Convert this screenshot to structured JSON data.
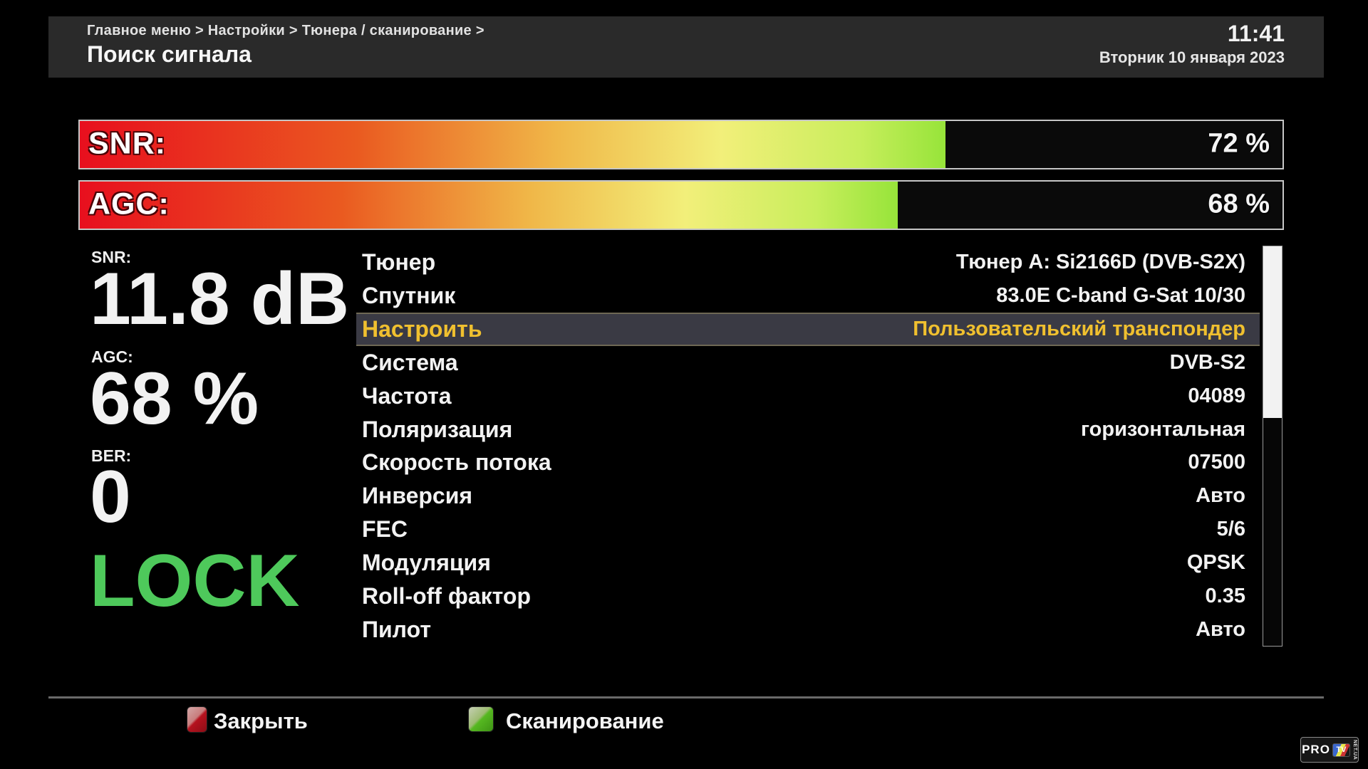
{
  "header": {
    "breadcrumb": "Главное меню > Настройки > Тюнера / сканирование >",
    "title": "Поиск сигнала",
    "time": "11:41",
    "date": "Вторник 10 января 2023"
  },
  "signal_bars": [
    {
      "label": "SNR:",
      "value_text": "72 %",
      "percent": 72
    },
    {
      "label": "AGC:",
      "value_text": "68 %",
      "percent": 68
    }
  ],
  "readouts": {
    "snr": {
      "label": "SNR:",
      "value": "11.8 dB"
    },
    "agc": {
      "label": "AGC:",
      "value": "68 %"
    },
    "ber": {
      "label": "BER:",
      "value": "0"
    },
    "lock_status": "LOCK"
  },
  "menu": {
    "rows": [
      {
        "label": "Тюнер",
        "value": "Тюнер A: Si2166D (DVB-S2X)",
        "selected": false
      },
      {
        "label": "Спутник",
        "value": "83.0E C-band G-Sat 10/30",
        "selected": false
      },
      {
        "label": "Настроить",
        "value": "Пользовательский транспондер",
        "selected": true
      },
      {
        "label": "Система",
        "value": "DVB-S2",
        "selected": false
      },
      {
        "label": "Частота",
        "value": "04089",
        "selected": false
      },
      {
        "label": "Поляризация",
        "value": "горизонтальная",
        "selected": false
      },
      {
        "label": "Скорость потока",
        "value": "07500",
        "selected": false
      },
      {
        "label": "Инверсия",
        "value": "Авто",
        "selected": false
      },
      {
        "label": "FEC",
        "value": "5/6",
        "selected": false
      },
      {
        "label": "Модуляция",
        "value": "QPSK",
        "selected": false
      },
      {
        "label": "Roll-off фактор",
        "value": "0.35",
        "selected": false
      },
      {
        "label": "Пилот",
        "value": "Авто",
        "selected": false
      }
    ],
    "scrollbar": {
      "thumb_percent": 43
    }
  },
  "footer": {
    "close_label": "Закрыть",
    "scan_label": "Сканирование"
  },
  "logo": {
    "pro": "PRO",
    "tv": "TV",
    "net": "NET.UA"
  },
  "colors": {
    "accent_yellow": "#f0c02f",
    "lock_green": "#4ec95b",
    "gradient_start_red": "#e80f1e",
    "gradient_end_green": "#97e43a",
    "button_red": "#b5121e",
    "button_green": "#56b821",
    "header_bg": "#2a2a2a",
    "selected_row_bg": "#3a3a44"
  }
}
